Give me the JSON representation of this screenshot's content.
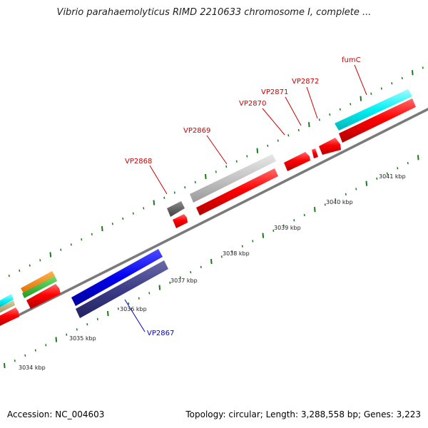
{
  "title": "Vibrio parahaemolyticus RIMD 2210633 chromosome I, complete ...",
  "footer": {
    "accession": "Accession: NC_004603",
    "summary": "Topology: circular; Length: 3,288,558 bp; Genes: 3,223"
  },
  "colors": {
    "cds": "#ff0000",
    "backbone": "#808080",
    "tick": "#1a7a1a",
    "label_red": "#cc0000",
    "label_blue": "#0000cc"
  },
  "kbp_labels": [
    "3034 kbp",
    "3035 kbp",
    "3036 kbp",
    "3037 kbp",
    "3038 kbp",
    "3039 kbp",
    "3040 kbp",
    "3041 kbp"
  ],
  "features": [
    {
      "label": "VP2867",
      "color": "#0000cc"
    },
    {
      "label": "VP2868",
      "color": "#cc0000"
    },
    {
      "label": "VP2869",
      "color": "#cc0000"
    },
    {
      "label": "VP2870",
      "color": "#cc0000"
    },
    {
      "label": "VP2871",
      "color": "#cc0000"
    },
    {
      "label": "VP2872",
      "color": "#cc0000"
    },
    {
      "label": "fumC",
      "color": "#cc0000"
    }
  ]
}
